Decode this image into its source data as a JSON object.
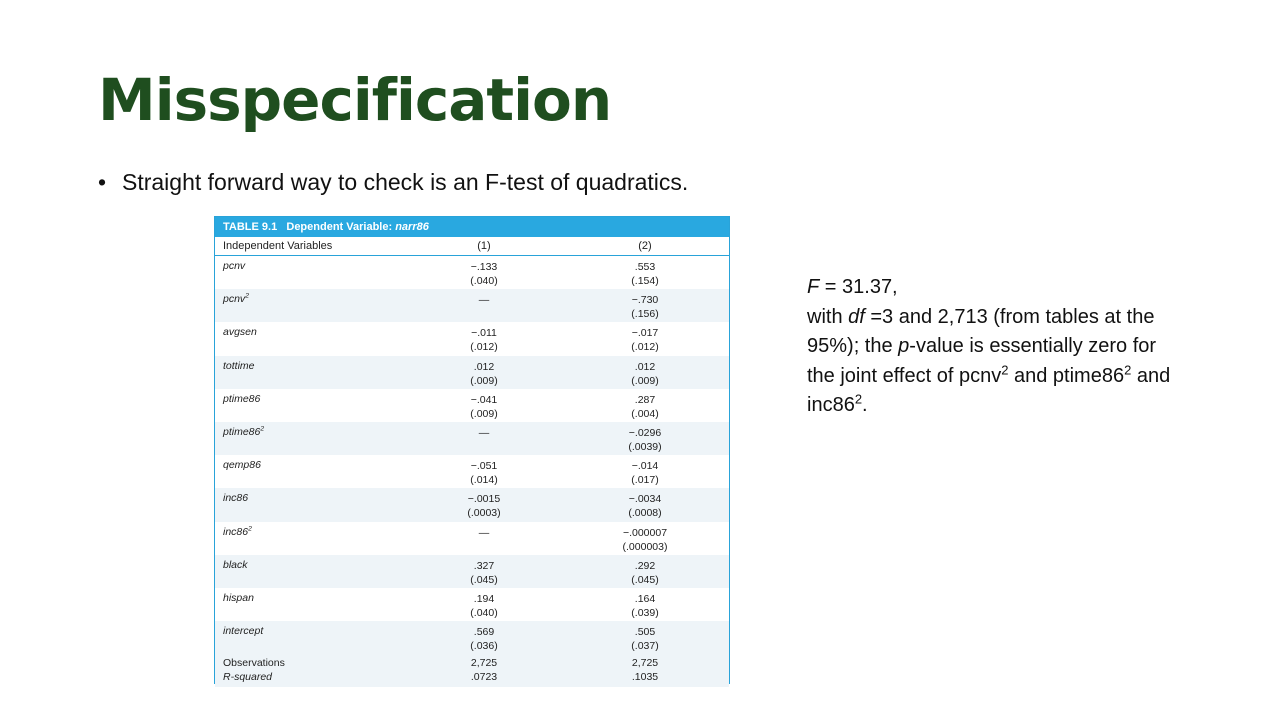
{
  "slide": {
    "title": "Misspecification",
    "bullet": "Straight forward way to check is an F-test of quadratics."
  },
  "table": {
    "label": "TABLE 9.1",
    "dep_label": "Dependent Variable:",
    "dep_var": "narr86",
    "col_head_var": "Independent Variables",
    "col_head_1": "(1)",
    "col_head_2": "(2)",
    "rows": [
      {
        "var": "pcnv",
        "sup": "",
        "c1": "−.133",
        "c1se": "(.040)",
        "c2": ".553",
        "c2se": "(.154)"
      },
      {
        "var": "pcnv",
        "sup": "2",
        "c1": "—",
        "c1se": "",
        "c2": "−.730",
        "c2se": "(.156)"
      },
      {
        "var": "avgsen",
        "sup": "",
        "c1": "−.011",
        "c1se": "(.012)",
        "c2": "−.017",
        "c2se": "(.012)"
      },
      {
        "var": "tottime",
        "sup": "",
        "c1": ".012",
        "c1se": "(.009)",
        "c2": ".012",
        "c2se": "(.009)"
      },
      {
        "var": "ptime86",
        "sup": "",
        "c1": "−.041",
        "c1se": "(.009)",
        "c2": ".287",
        "c2se": "(.004)"
      },
      {
        "var": "ptime86",
        "sup": "2",
        "c1": "—",
        "c1se": "",
        "c2": "−.0296",
        "c2se": "(.0039)"
      },
      {
        "var": "qemp86",
        "sup": "",
        "c1": "−.051",
        "c1se": "(.014)",
        "c2": "−.014",
        "c2se": "(.017)"
      },
      {
        "var": "inc86",
        "sup": "",
        "c1": "−.0015",
        "c1se": "(.0003)",
        "c2": "−.0034",
        "c2se": "(.0008)"
      },
      {
        "var": "inc86",
        "sup": "2",
        "c1": "—",
        "c1se": "",
        "c2": "−.000007",
        "c2se": "(.000003)"
      },
      {
        "var": "black",
        "sup": "",
        "c1": ".327",
        "c1se": "(.045)",
        "c2": ".292",
        "c2se": "(.045)"
      },
      {
        "var": "hispan",
        "sup": "",
        "c1": ".194",
        "c1se": "(.040)",
        "c2": ".164",
        "c2se": "(.039)"
      },
      {
        "var": "intercept",
        "sup": "",
        "c1": ".569",
        "c1se": "(.036)",
        "c2": ".505",
        "c2se": "(.037)"
      }
    ],
    "obs_label": "Observations",
    "obs_1": "2,725",
    "obs_2": "2,725",
    "r2_label": "R-squared",
    "r2_1": ".0723",
    "r2_2": ".1035"
  },
  "side": {
    "f_label": "F",
    "f_value": " = 31.37,",
    "line2_a": "with ",
    "df_label": "df",
    "line2_b": " =3 and 2,713 (from tables at the 95%); the ",
    "p_label": "p",
    "line2_c": "-value is essentially zero for the joint effect of pcnv",
    "sup1": "2",
    "line2_d": " and ptime86",
    "sup2": "2",
    "line2_e": " and inc86",
    "sup3": "2",
    "line2_f": "."
  }
}
